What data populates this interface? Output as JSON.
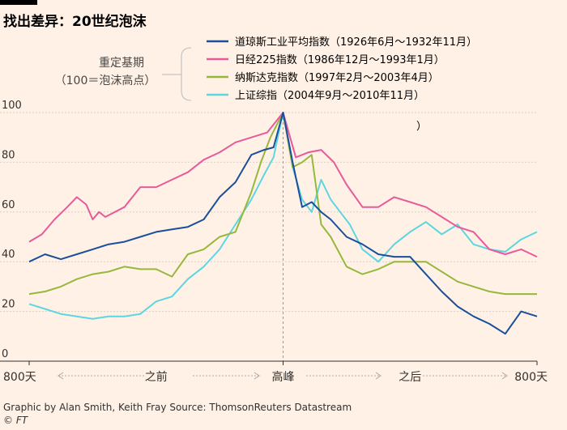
{
  "title": "找出差异：20世纪泡沫",
  "rebase_label_1": "重定基期",
  "rebase_label_2": "（100＝泡沫高点）",
  "stray_text": "）",
  "source": "Graphic by Alan Smith, Keith Fray   Source: ThomsonReuters Datastream",
  "credit": "© FT",
  "chart_data": {
    "type": "line",
    "title": "找出差异：20世纪泡沫",
    "xlabel": "",
    "ylabel": "",
    "x_ticks": [
      "800天",
      "之前",
      "高峰",
      "之后",
      "800天"
    ],
    "x_range": [
      -800,
      800
    ],
    "ylim": [
      0,
      100
    ],
    "y_ticks": [
      0,
      20,
      40,
      60,
      80,
      100
    ],
    "grid": true,
    "peak_marker": true,
    "legend_position": "top",
    "series": [
      {
        "name": "道琼斯工业平均指数（1926年6月～1932年11月）",
        "color": "#1a4f9c",
        "x": [
          -800,
          -750,
          -700,
          -650,
          -600,
          -550,
          -500,
          -450,
          -400,
          -350,
          -300,
          -250,
          -200,
          -150,
          -100,
          -60,
          -30,
          0,
          30,
          60,
          90,
          120,
          150,
          200,
          250,
          300,
          350,
          400,
          450,
          500,
          550,
          600,
          650,
          700,
          750,
          800
        ],
        "y": [
          40,
          43,
          41,
          43,
          45,
          47,
          48,
          50,
          52,
          53,
          54,
          57,
          66,
          72,
          83,
          85,
          86,
          100,
          80,
          62,
          64,
          60,
          57,
          50,
          47,
          43,
          42,
          42,
          35,
          28,
          22,
          18,
          15,
          11,
          20,
          18
        ]
      },
      {
        "name": "日经225指数（1986年12月～1993年1月）",
        "color": "#e75a9c",
        "x": [
          -800,
          -760,
          -720,
          -680,
          -650,
          -620,
          -600,
          -580,
          -560,
          -500,
          -450,
          -400,
          -350,
          -300,
          -250,
          -200,
          -150,
          -100,
          -50,
          0,
          40,
          80,
          120,
          160,
          200,
          250,
          300,
          350,
          400,
          450,
          500,
          550,
          600,
          650,
          700,
          750,
          800
        ],
        "y": [
          48,
          51,
          57,
          62,
          66,
          63,
          57,
          60,
          58,
          62,
          70,
          70,
          73,
          76,
          81,
          84,
          88,
          90,
          92,
          100,
          82,
          84,
          85,
          80,
          71,
          62,
          62,
          66,
          64,
          62,
          58,
          54,
          52,
          45,
          43,
          45,
          42
        ]
      },
      {
        "name": "纳斯达克指数（1997年2月～2003年4月）",
        "color": "#96b83d",
        "x": [
          -800,
          -750,
          -700,
          -650,
          -600,
          -550,
          -500,
          -450,
          -400,
          -350,
          -300,
          -250,
          -200,
          -150,
          -100,
          -70,
          -40,
          0,
          30,
          60,
          90,
          120,
          150,
          200,
          250,
          300,
          350,
          400,
          450,
          500,
          550,
          600,
          650,
          700,
          750,
          800
        ],
        "y": [
          27,
          28,
          30,
          33,
          35,
          36,
          38,
          37,
          37,
          34,
          43,
          45,
          50,
          52,
          68,
          80,
          90,
          100,
          78,
          80,
          83,
          55,
          50,
          38,
          35,
          37,
          40,
          40,
          40,
          36,
          32,
          30,
          28,
          27,
          27,
          27
        ]
      },
      {
        "name": "上证综指（2004年9月～2010年11月）",
        "color": "#5dd6e0",
        "x": [
          -800,
          -750,
          -700,
          -650,
          -600,
          -550,
          -500,
          -450,
          -400,
          -350,
          -300,
          -250,
          -200,
          -150,
          -100,
          -60,
          -30,
          0,
          30,
          60,
          90,
          120,
          150,
          180,
          210,
          250,
          300,
          350,
          400,
          450,
          500,
          550,
          600,
          650,
          700,
          750,
          800
        ],
        "y": [
          23,
          21,
          19,
          18,
          17,
          18,
          18,
          19,
          24,
          26,
          33,
          38,
          45,
          55,
          65,
          75,
          82,
          100,
          78,
          65,
          60,
          73,
          65,
          60,
          55,
          45,
          40,
          47,
          52,
          56,
          51,
          55,
          47,
          45,
          44,
          49,
          52
        ]
      }
    ]
  }
}
